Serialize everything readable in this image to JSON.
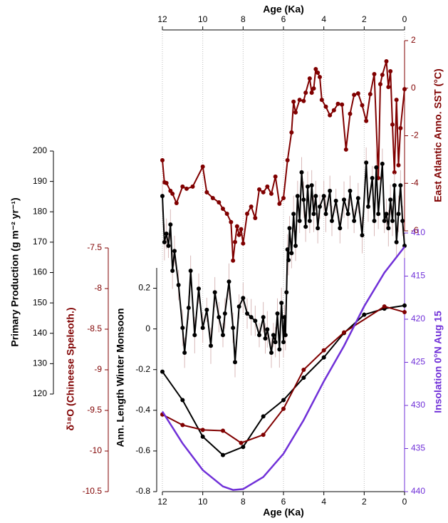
{
  "chart_data": {
    "type": "line",
    "x_label": "Age (Ka)",
    "xlim": [
      12,
      0
    ],
    "xticks": [
      12,
      10,
      8,
      6,
      4,
      2,
      0
    ],
    "grid": true,
    "axes": [
      {
        "label": "East Atlantic Anno. SST (°C)",
        "side": "right",
        "color": "#800000",
        "lim": [
          -6,
          2
        ],
        "ticks": [
          2,
          0,
          -2,
          -4,
          -6
        ]
      },
      {
        "label": "Insolation 0°N Aug 15",
        "side": "right",
        "color": "#7030d8",
        "inverted": true,
        "lim": [
          410,
          440
        ],
        "ticks": [
          410,
          415,
          420,
          425,
          430,
          435,
          440
        ]
      },
      {
        "label": "Primary Production (g m⁻² yr⁻¹)",
        "side": "left",
        "color": "#000000",
        "lim": [
          120,
          200
        ],
        "ticks": [
          200,
          190,
          180,
          170,
          160,
          150,
          140,
          130,
          120
        ]
      },
      {
        "label": "δ¹⁸O (Chineese Speleoth.)",
        "side": "left",
        "color": "#800000",
        "lim": [
          -10.5,
          -7.5
        ],
        "ticks": [
          -7.5,
          -8,
          -8.5,
          -9,
          -9.5,
          -10,
          -10.5
        ]
      },
      {
        "label": "Ann. Length Winter Monsoon",
        "side": "left",
        "color": "#000000",
        "lim": [
          -0.8,
          0.3
        ],
        "ticks": [
          0.2,
          0,
          -0.2,
          -0.4,
          -0.6,
          -0.8
        ]
      }
    ],
    "series": [
      {
        "axis": 0,
        "color": "#800000",
        "markers": true,
        "x": [
          12.0,
          11.9,
          11.8,
          11.6,
          11.5,
          11.3,
          11.0,
          10.8,
          10.5,
          10.0,
          9.8,
          9.5,
          9.2,
          9.0,
          8.8,
          8.6,
          8.5,
          8.4,
          8.3,
          8.2,
          8.1,
          8.0,
          7.8,
          7.6,
          7.4,
          7.2,
          7.0,
          6.8,
          6.6,
          6.4,
          6.2,
          6.0,
          5.8,
          5.6,
          5.5,
          5.4,
          5.2,
          5.0,
          4.9,
          4.7,
          4.6,
          4.5,
          4.4,
          4.3,
          4.2,
          4.1,
          3.9,
          3.7,
          3.5,
          3.3,
          3.1,
          2.9,
          2.7,
          2.5,
          2.3,
          2.1,
          1.9,
          1.7,
          1.5,
          1.3,
          1.2,
          1.1,
          0.9,
          0.8,
          0.7,
          0.6,
          0.5,
          0.4,
          0.3,
          0.2,
          0.0
        ],
        "values": [
          -3.03,
          -3.96,
          -3.99,
          -4.32,
          -4.44,
          -4.83,
          -4.14,
          -4.23,
          -4.14,
          -3.3,
          -4.38,
          -4.62,
          -4.8,
          -5.07,
          -5.28,
          -5.63,
          -7.25,
          -6.47,
          -5.81,
          -6.17,
          -5.93,
          -6.53,
          -5.28,
          -4.98,
          -5.46,
          -4.26,
          -4.38,
          -4.14,
          -4.44,
          -3.72,
          -4.86,
          -4.62,
          -3.03,
          -1.86,
          -0.57,
          -1.02,
          -0.49,
          -0.54,
          -0.19,
          0.41,
          -0.19,
          -0.01,
          0.8,
          0.65,
          0.47,
          -0.49,
          -0.78,
          -1.14,
          -0.93,
          -0.66,
          -0.69,
          -2.58,
          -1.08,
          -0.28,
          -0.22,
          -0.72,
          -1.38,
          -0.25,
          0.59,
          -3.78,
          0.17,
          0.56,
          1.13,
          0.05,
          0.71,
          -1.53,
          -3.54,
          -0.49,
          -3.24,
          -1.68,
          -0.04
        ]
      },
      {
        "axis": 2,
        "color": "#000000",
        "markers": true,
        "error_color": "#d8b8b8",
        "x": [
          12.0,
          11.9,
          11.8,
          11.7,
          11.6,
          11.5,
          11.4,
          11.2,
          11.0,
          10.9,
          10.7,
          10.6,
          10.4,
          10.2,
          10.0,
          9.8,
          9.6,
          9.4,
          9.2,
          9.0,
          8.9,
          8.7,
          8.5,
          8.4,
          8.2,
          8.0,
          7.8,
          7.6,
          7.4,
          7.2,
          7.0,
          6.9,
          6.8,
          6.6,
          6.5,
          6.4,
          6.3,
          6.2,
          6.1,
          6.0,
          5.95,
          5.9,
          5.85,
          5.8,
          5.75,
          5.7,
          5.6,
          5.5,
          5.4,
          5.3,
          5.2,
          5.1,
          5.0,
          4.9,
          4.8,
          4.7,
          4.6,
          4.5,
          4.4,
          4.3,
          4.2,
          4.0,
          3.9,
          3.7,
          3.6,
          3.4,
          3.2,
          3.0,
          2.8,
          2.7,
          2.5,
          2.3,
          2.1,
          1.9,
          1.8,
          1.6,
          1.5,
          1.4,
          1.3,
          1.1,
          1.0,
          0.9,
          0.8,
          0.7,
          0.6,
          0.5,
          0.4,
          0.3,
          0.2,
          0.1,
          0.0
        ],
        "values": [
          185.2,
          170,
          172.8,
          168.8,
          175.8,
          160.6,
          167.1,
          155.9,
          141.8,
          133.6,
          148.4,
          160.6,
          139.4,
          154.7,
          141.8,
          147.7,
          135.9,
          153.5,
          145.3,
          139.4,
          146.5,
          157,
          141.8,
          130.5,
          148.8,
          151.6,
          146.5,
          145.3,
          144.1,
          139.4,
          145.3,
          138.3,
          141.3,
          133.6,
          139.4,
          137.1,
          146.5,
          134.7,
          150,
          137.1,
          145.3,
          139.4,
          153.5,
          167.6,
          164.1,
          174.6,
          166.4,
          179.3,
          168.8,
          185.2,
          177,
          193,
          184,
          175.1,
          188.3,
          177,
          188.7,
          179.3,
          185.2,
          174.6,
          181.7,
          185.2,
          179.3,
          186.9,
          177,
          183.6,
          174.6,
          184,
          179.3,
          186.9,
          177,
          184.5,
          172.3,
          196.2,
          181.7,
          191.1,
          177,
          194.6,
          179.3,
          195.8,
          177,
          179.3,
          174.6,
          184,
          177,
          188.7,
          170,
          179.3,
          188.7,
          177,
          168.8
        ],
        "errors": [
          5,
          6,
          5,
          4,
          5,
          6,
          5,
          5,
          6,
          5,
          4,
          5,
          6,
          5,
          5,
          4,
          6,
          5,
          5,
          4,
          5,
          6,
          5,
          5,
          4,
          5,
          5,
          6,
          5,
          4,
          5,
          5,
          6,
          5,
          4,
          5,
          5,
          6,
          5,
          5,
          4,
          5,
          6,
          5,
          5,
          4,
          5,
          6,
          5,
          5,
          4,
          5,
          6,
          5,
          5,
          4,
          5,
          6,
          5,
          5,
          4,
          5,
          6,
          5,
          5,
          4,
          5,
          6,
          5,
          5,
          4,
          5,
          6,
          5,
          5,
          4,
          5,
          6,
          5,
          5,
          4,
          5,
          6,
          5,
          5,
          4,
          5,
          6,
          5,
          5,
          4
        ]
      },
      {
        "axis": 4,
        "color": "#000000",
        "markers": true,
        "x": [
          12,
          11,
          10,
          9,
          8,
          7,
          6,
          5,
          4,
          3,
          2,
          1,
          0
        ],
        "values": [
          -0.21,
          -0.35,
          -0.53,
          -0.62,
          -0.58,
          -0.43,
          -0.35,
          -0.24,
          -0.14,
          -0.02,
          0.07,
          0.1,
          0.115
        ]
      },
      {
        "axis": 3,
        "color": "#800000",
        "markers": true,
        "x": [
          12,
          11,
          10,
          9,
          8.1,
          7,
          6,
          5,
          4,
          3,
          1,
          0
        ],
        "values": [
          -9.55,
          -9.68,
          -9.74,
          -9.75,
          -9.9,
          -9.8,
          -9.48,
          -9.0,
          -8.76,
          -8.54,
          -8.22,
          -8.29
        ]
      },
      {
        "axis": 1,
        "color": "#7030d8",
        "markers": false,
        "x": [
          12,
          11,
          10,
          9,
          8.5,
          8,
          7,
          6,
          5,
          4,
          3,
          2,
          1,
          0
        ],
        "values": [
          430.7,
          434.4,
          437.5,
          439.4,
          439.8,
          439.7,
          438.3,
          435.6,
          431.7,
          427.2,
          423.1,
          418.5,
          414.6,
          411.6
        ]
      }
    ]
  }
}
